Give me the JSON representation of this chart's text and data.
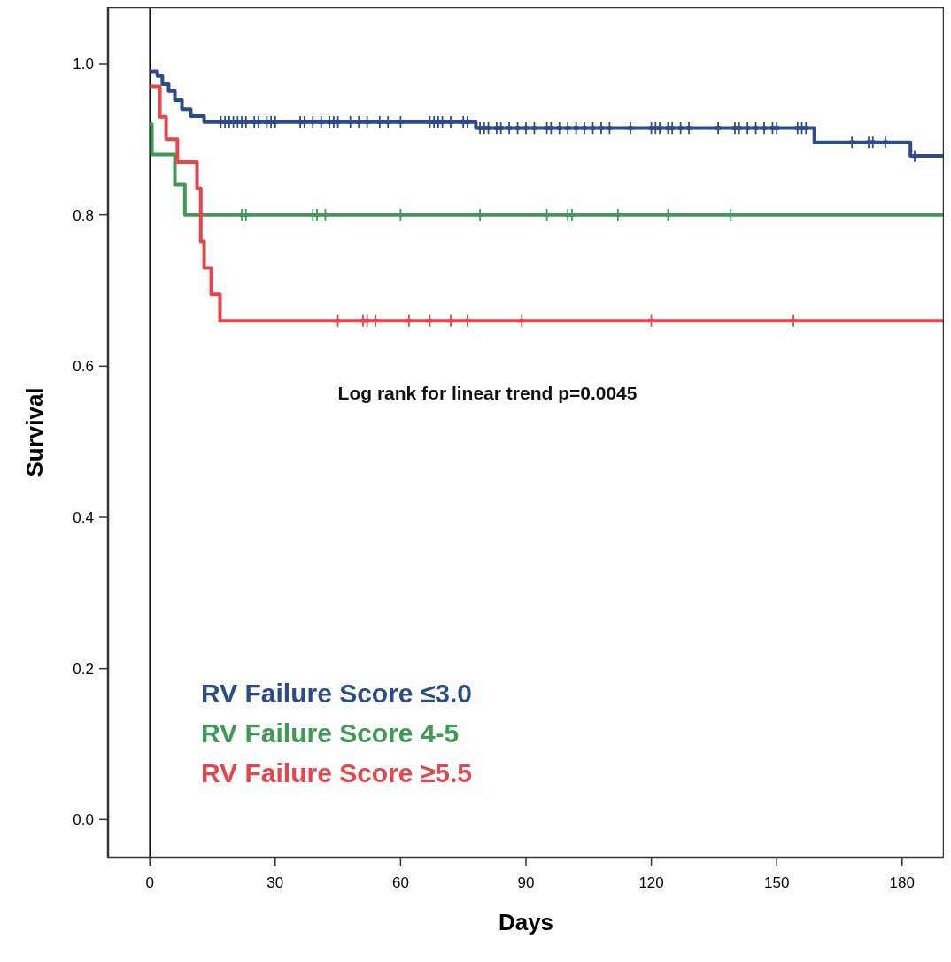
{
  "chart_data": {
    "type": "step",
    "xlabel": "Days",
    "ylabel": "Survival",
    "xlim": [
      -10,
      190
    ],
    "ylim": [
      -0.05,
      1.075
    ],
    "xticks": [
      0,
      30,
      60,
      90,
      120,
      150,
      180
    ],
    "yticks": [
      {
        "value": 0,
        "label": "0.0"
      },
      {
        "value": 0.2,
        "label": "0.2"
      },
      {
        "value": 0.4,
        "label": "0.4"
      },
      {
        "value": 0.6,
        "label": "0.6"
      },
      {
        "value": 0.8,
        "label": "0.8"
      },
      {
        "value": 1,
        "label": "1.0"
      }
    ],
    "grid": false,
    "legend": "bottom left",
    "annotations": [
      "Log rank for linear trend p=0.0045"
    ],
    "ref_lines": [
      {
        "axis": "x",
        "value": 0,
        "color": "#000000"
      }
    ],
    "series": [
      {
        "name": "RV Failure Score ≤3.0",
        "color": "#2b4b8c",
        "x": [
          0,
          1.8,
          3,
          4.5,
          6,
          7.7,
          9.8,
          13,
          78,
          159,
          182,
          190
        ],
        "values": [
          0.99,
          0.984,
          0.973,
          0.964,
          0.952,
          0.94,
          0.931,
          0.923,
          0.915,
          0.896,
          0.878,
          0.878
        ]
      },
      {
        "name": "RV Failure Score 4-5",
        "color": "#3f9a55",
        "x": [
          0,
          0.5,
          6,
          8.4,
          190
        ],
        "values": [
          0.92,
          0.88,
          0.84,
          0.8,
          0.8
        ]
      },
      {
        "name": "RV Failure Score ≥5.5",
        "color": "#e8444c",
        "x": [
          0,
          2.4,
          3.9,
          6.6,
          11.3,
          12.2,
          13,
          14.7,
          16.8,
          190
        ],
        "values": [
          0.97,
          0.93,
          0.9,
          0.87,
          0.835,
          0.765,
          0.73,
          0.695,
          0.66,
          0.66
        ]
      },
      {
        "type": "scatter",
        "marker": "cross",
        "color": "#2b4b8c",
        "x": [
          17,
          18,
          19,
          20,
          21,
          22,
          23,
          25,
          26,
          28,
          29,
          30,
          36,
          37,
          39,
          41,
          43,
          44,
          45,
          48,
          50,
          52,
          55,
          57,
          60,
          67,
          68,
          69,
          70,
          72,
          75,
          76,
          79,
          80,
          81,
          83,
          84,
          86,
          88,
          90,
          92,
          95,
          96,
          98,
          100,
          102,
          104,
          106,
          108,
          110,
          115,
          120,
          121,
          122,
          124,
          125,
          127,
          129,
          136,
          140,
          141,
          143,
          145,
          147,
          149,
          150,
          155,
          156,
          157,
          168,
          172,
          173,
          176,
          183
        ],
        "values": [
          0.923,
          0.923,
          0.923,
          0.923,
          0.923,
          0.923,
          0.923,
          0.923,
          0.923,
          0.923,
          0.923,
          0.923,
          0.923,
          0.923,
          0.923,
          0.923,
          0.923,
          0.923,
          0.923,
          0.923,
          0.923,
          0.923,
          0.923,
          0.923,
          0.923,
          0.923,
          0.923,
          0.923,
          0.923,
          0.923,
          0.923,
          0.923,
          0.915,
          0.915,
          0.915,
          0.915,
          0.915,
          0.915,
          0.915,
          0.915,
          0.915,
          0.915,
          0.915,
          0.915,
          0.915,
          0.915,
          0.915,
          0.915,
          0.915,
          0.915,
          0.915,
          0.915,
          0.915,
          0.915,
          0.915,
          0.915,
          0.915,
          0.915,
          0.915,
          0.915,
          0.915,
          0.915,
          0.915,
          0.915,
          0.915,
          0.915,
          0.915,
          0.915,
          0.915,
          0.896,
          0.896,
          0.896,
          0.896,
          0.878
        ]
      },
      {
        "type": "scatter",
        "marker": "cross",
        "color": "#3f9a55",
        "x": [
          22,
          23,
          39,
          40,
          42,
          60,
          79,
          95,
          100,
          101,
          112,
          124,
          139
        ],
        "values": [
          0.8,
          0.8,
          0.8,
          0.8,
          0.8,
          0.8,
          0.8,
          0.8,
          0.8,
          0.8,
          0.8,
          0.8,
          0.8
        ]
      },
      {
        "type": "scatter",
        "marker": "cross",
        "color": "#e8444c",
        "x": [
          45,
          51,
          52,
          54,
          62,
          67,
          72,
          76,
          89,
          120,
          154
        ],
        "values": [
          0.66,
          0.66,
          0.66,
          0.66,
          0.66,
          0.66,
          0.66,
          0.66,
          0.66,
          0.66,
          0.66
        ]
      }
    ]
  }
}
